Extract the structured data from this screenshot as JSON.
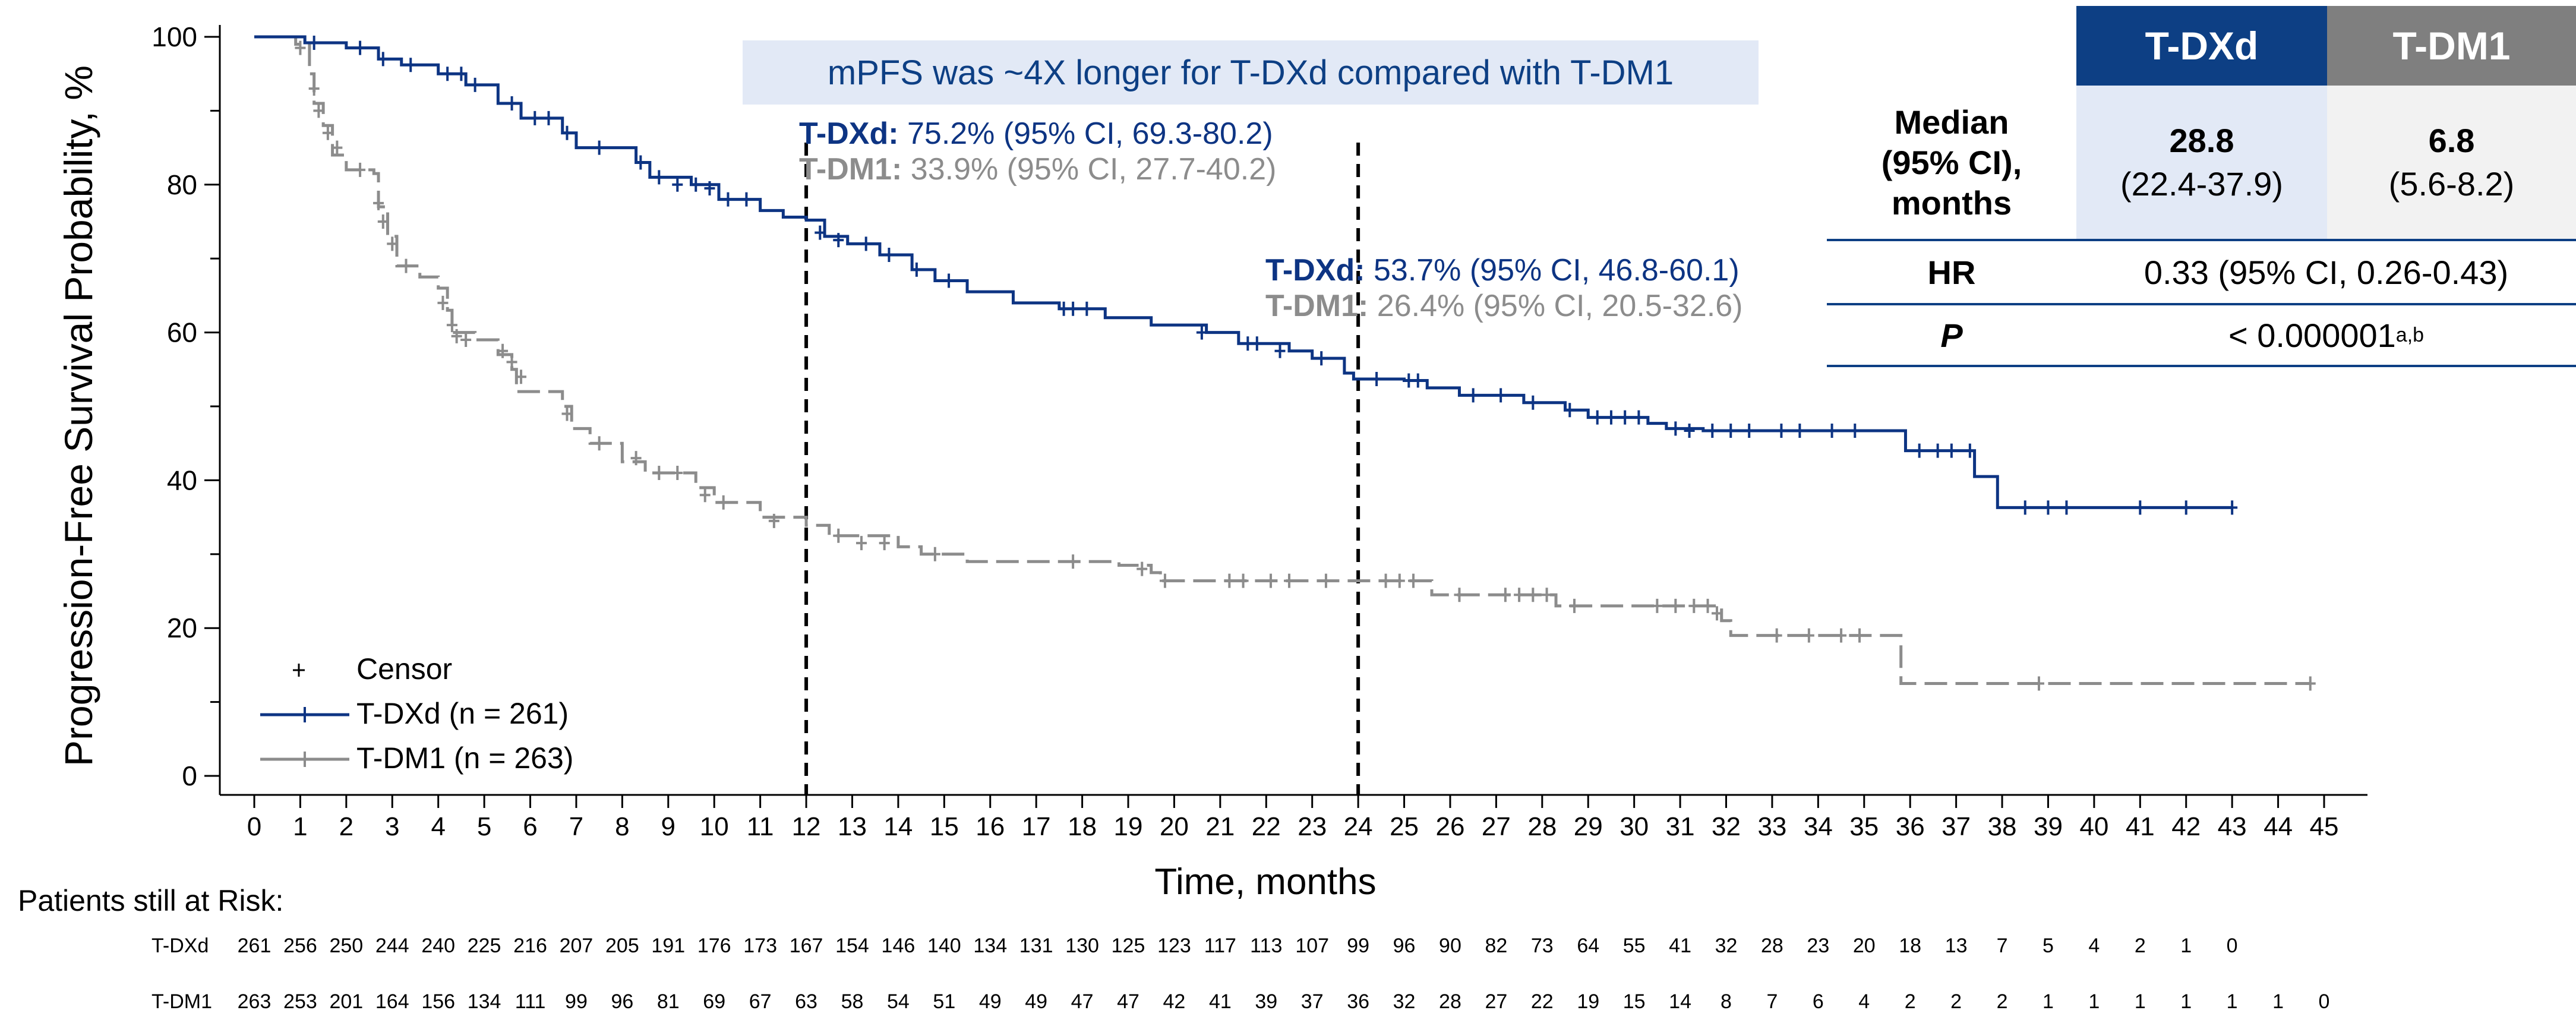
{
  "chart_data": {
    "type": "line",
    "title": "",
    "xlabel": "Time, months",
    "ylabel": "Progression-Free Survival Probability, %",
    "xlim": [
      0,
      45
    ],
    "ylim": [
      0,
      100
    ],
    "xticks": [
      0,
      1,
      2,
      3,
      4,
      5,
      6,
      7,
      8,
      9,
      10,
      11,
      12,
      13,
      14,
      15,
      16,
      17,
      18,
      19,
      20,
      21,
      22,
      23,
      24,
      25,
      26,
      27,
      28,
      29,
      30,
      31,
      32,
      33,
      34,
      35,
      36,
      37,
      38,
      39,
      40,
      41,
      42,
      43,
      44,
      45
    ],
    "yticks": [
      0,
      20,
      40,
      60,
      80,
      100
    ],
    "legend_position": "bottom-left",
    "censor_label": "Censor",
    "series": [
      {
        "name": "T-DXd (n = 261)",
        "color": "#0d3483",
        "style": "solid",
        "steps": [
          [
            0,
            100
          ],
          [
            1.1,
            99.2
          ],
          [
            2,
            98.5
          ],
          [
            2.7,
            97
          ],
          [
            3.2,
            96.2
          ],
          [
            4,
            95
          ],
          [
            4.6,
            93.5
          ],
          [
            5.3,
            91
          ],
          [
            5.8,
            89
          ],
          [
            6.7,
            87
          ],
          [
            7,
            85
          ],
          [
            8.3,
            83
          ],
          [
            8.6,
            81
          ],
          [
            9.5,
            80
          ],
          [
            10.1,
            78
          ],
          [
            11,
            76.5
          ],
          [
            11.5,
            75.6
          ],
          [
            12,
            75.2
          ],
          [
            12.4,
            73
          ],
          [
            12.9,
            72
          ],
          [
            13.6,
            70.5
          ],
          [
            14.3,
            68.5
          ],
          [
            14.8,
            67
          ],
          [
            15.5,
            65.5
          ],
          [
            16.5,
            64
          ],
          [
            17.5,
            63.2
          ],
          [
            18.5,
            62
          ],
          [
            19.5,
            61
          ],
          [
            20.7,
            60
          ],
          [
            21.4,
            58.5
          ],
          [
            22.5,
            57.5
          ],
          [
            23,
            56.5
          ],
          [
            23.7,
            54.5
          ],
          [
            23.9,
            53.7
          ],
          [
            25,
            53.5
          ],
          [
            25.5,
            52.5
          ],
          [
            26.2,
            51.5
          ],
          [
            27.6,
            50.5
          ],
          [
            28.5,
            49.5
          ],
          [
            29,
            48.5
          ],
          [
            30.3,
            47.7
          ],
          [
            30.7,
            47
          ],
          [
            31.5,
            46.7
          ],
          [
            35.9,
            44
          ],
          [
            37.4,
            40.5
          ],
          [
            37.9,
            36.3
          ],
          [
            43,
            36.3
          ]
        ],
        "censors": [
          [
            1.3,
            99.2
          ],
          [
            2.3,
            98.5
          ],
          [
            2.8,
            97
          ],
          [
            3.4,
            96.2
          ],
          [
            4.2,
            95
          ],
          [
            4.5,
            95
          ],
          [
            4.8,
            93.5
          ],
          [
            5.6,
            91
          ],
          [
            6.1,
            89
          ],
          [
            6.4,
            89
          ],
          [
            6.8,
            87
          ],
          [
            7.5,
            85
          ],
          [
            8.4,
            83
          ],
          [
            8.8,
            81
          ],
          [
            9.2,
            80
          ],
          [
            9.6,
            80
          ],
          [
            9.9,
            79.5
          ],
          [
            10.3,
            78
          ],
          [
            10.7,
            78
          ],
          [
            12.3,
            73.5
          ],
          [
            12.7,
            72.5
          ],
          [
            13.3,
            72
          ],
          [
            13.8,
            70.5
          ],
          [
            14.4,
            68.5
          ],
          [
            15.1,
            67
          ],
          [
            17.6,
            63.2
          ],
          [
            17.8,
            63.2
          ],
          [
            18.1,
            63.2
          ],
          [
            20.6,
            60
          ],
          [
            21.6,
            58.5
          ],
          [
            21.8,
            58.5
          ],
          [
            22.3,
            57.5
          ],
          [
            23.2,
            56.5
          ],
          [
            24.4,
            53.7
          ],
          [
            25.1,
            53.5
          ],
          [
            25.3,
            53.5
          ],
          [
            26.5,
            51.5
          ],
          [
            27.1,
            51.5
          ],
          [
            27.8,
            50.5
          ],
          [
            28.6,
            49.5
          ],
          [
            29.2,
            48.5
          ],
          [
            29.5,
            48.5
          ],
          [
            29.8,
            48.5
          ],
          [
            30.1,
            48.5
          ],
          [
            30.9,
            47
          ],
          [
            31.2,
            46.7
          ],
          [
            31.7,
            46.7
          ],
          [
            32.1,
            46.7
          ],
          [
            32.5,
            46.7
          ],
          [
            33.2,
            46.7
          ],
          [
            33.6,
            46.7
          ],
          [
            34.3,
            46.7
          ],
          [
            34.8,
            46.7
          ],
          [
            36.2,
            44
          ],
          [
            36.6,
            44
          ],
          [
            36.9,
            44
          ],
          [
            37.3,
            44
          ],
          [
            38.5,
            36.3
          ],
          [
            39,
            36.3
          ],
          [
            39.4,
            36.3
          ],
          [
            41,
            36.3
          ],
          [
            42,
            36.3
          ],
          [
            43,
            36.3
          ]
        ]
      },
      {
        "name": "T-DM1 (n = 263)",
        "color": "#8c8c8c",
        "style": "dashed",
        "steps": [
          [
            0,
            100
          ],
          [
            0.9,
            99
          ],
          [
            1.2,
            95
          ],
          [
            1.3,
            91
          ],
          [
            1.5,
            88
          ],
          [
            1.7,
            84
          ],
          [
            2,
            82
          ],
          [
            2.6,
            81.5
          ],
          [
            2.7,
            77
          ],
          [
            2.9,
            73
          ],
          [
            3.1,
            69
          ],
          [
            3.6,
            67.5
          ],
          [
            4,
            66
          ],
          [
            4.2,
            63
          ],
          [
            4.3,
            60
          ],
          [
            4.8,
            59
          ],
          [
            5.3,
            57
          ],
          [
            5.6,
            55
          ],
          [
            5.7,
            52
          ],
          [
            6.7,
            50
          ],
          [
            6.9,
            47
          ],
          [
            7.3,
            45
          ],
          [
            8,
            42.5
          ],
          [
            8.5,
            41
          ],
          [
            9.6,
            39
          ],
          [
            10,
            37
          ],
          [
            11,
            35
          ],
          [
            12,
            33.9
          ],
          [
            12.5,
            32.5
          ],
          [
            14,
            31
          ],
          [
            14.5,
            30
          ],
          [
            15.5,
            29
          ],
          [
            18.8,
            28.5
          ],
          [
            19.5,
            27.5
          ],
          [
            19.7,
            26.4
          ],
          [
            24.3,
            26.4
          ],
          [
            25.6,
            24.5
          ],
          [
            28.3,
            23
          ],
          [
            31.9,
            21
          ],
          [
            32.1,
            19
          ],
          [
            35.8,
            12.5
          ],
          [
            44.7,
            12.5
          ]
        ],
        "censors": [
          [
            1,
            98.5
          ],
          [
            1.3,
            93
          ],
          [
            1.4,
            90
          ],
          [
            1.6,
            87
          ],
          [
            1.8,
            85
          ],
          [
            2.3,
            82
          ],
          [
            2.7,
            77.5
          ],
          [
            2.8,
            75
          ],
          [
            3,
            72
          ],
          [
            3.3,
            69
          ],
          [
            4.1,
            64
          ],
          [
            4.3,
            61
          ],
          [
            4.4,
            59.5
          ],
          [
            4.6,
            59
          ],
          [
            5.4,
            57.5
          ],
          [
            5.6,
            56
          ],
          [
            5.8,
            54
          ],
          [
            6.8,
            49
          ],
          [
            7.5,
            45
          ],
          [
            8.3,
            43
          ],
          [
            8.8,
            41
          ],
          [
            9.2,
            41
          ],
          [
            9.8,
            38
          ],
          [
            10.2,
            37
          ],
          [
            11.3,
            34.5
          ],
          [
            12.7,
            32.5
          ],
          [
            13.2,
            31.5
          ],
          [
            13.7,
            31.5
          ],
          [
            14.8,
            30
          ],
          [
            17.8,
            29
          ],
          [
            19.3,
            28
          ],
          [
            19.8,
            26.4
          ],
          [
            21.2,
            26.4
          ],
          [
            21.5,
            26.4
          ],
          [
            22.1,
            26.4
          ],
          [
            22.5,
            26.4
          ],
          [
            23.3,
            26.4
          ],
          [
            24.6,
            26.4
          ],
          [
            24.9,
            26.4
          ],
          [
            25.2,
            26.4
          ],
          [
            26.2,
            24.5
          ],
          [
            27.2,
            24.5
          ],
          [
            27.5,
            24.5
          ],
          [
            27.8,
            24.5
          ],
          [
            28.1,
            24.5
          ],
          [
            28.7,
            23
          ],
          [
            30.5,
            23
          ],
          [
            30.9,
            23
          ],
          [
            31.3,
            23
          ],
          [
            31.6,
            23
          ],
          [
            31.8,
            22
          ],
          [
            33.1,
            19
          ],
          [
            33.8,
            19
          ],
          [
            34.5,
            19
          ],
          [
            34.9,
            19
          ],
          [
            38.8,
            12.5
          ],
          [
            44.7,
            12.5
          ]
        ]
      }
    ],
    "annotations": [
      {
        "x": 12,
        "dashed_line": true,
        "blue_label": "T-DXd:",
        "blue_text": " 75.2% (95% CI, 69.3-80.2)",
        "grey_label": "T-DM1:",
        "grey_text": " 33.9% (95% CI, 27.7-40.2)"
      },
      {
        "x": 24,
        "dashed_line": true,
        "blue_label": "T-DXd:",
        "blue_text": " 53.7% (95% CI, 46.8-60.1)",
        "grey_label": "T-DM1:",
        "grey_text": " 26.4% (95% CI, 20.5-32.6)"
      }
    ],
    "risk_table": {
      "title": "Patients still at Risk:",
      "rows": [
        {
          "arm": "T-DXd",
          "values": [
            "261",
            "256",
            "250",
            "244",
            "240",
            "225",
            "216",
            "207",
            "205",
            "191",
            "176",
            "173",
            "167",
            "154",
            "146",
            "140",
            "134",
            "131",
            "130",
            "125",
            "123",
            "117",
            "113",
            "107",
            "99",
            "96",
            "90",
            "82",
            "73",
            "64",
            "55",
            "41",
            "32",
            "28",
            "23",
            "20",
            "18",
            "13",
            "7",
            "5",
            "4",
            "2",
            "1",
            "0"
          ]
        },
        {
          "arm": "T-DM1",
          "values": [
            "263",
            "253",
            "201",
            "164",
            "156",
            "134",
            "111",
            "99",
            "96",
            "81",
            "69",
            "67",
            "63",
            "58",
            "54",
            "51",
            "49",
            "49",
            "47",
            "47",
            "42",
            "41",
            "39",
            "37",
            "36",
            "32",
            "28",
            "27",
            "22",
            "19",
            "15",
            "14",
            "8",
            "7",
            "6",
            "4",
            "2",
            "2",
            "2",
            "1",
            "1",
            "1",
            "1",
            "1",
            "1",
            "0"
          ]
        }
      ]
    }
  },
  "banner": "mPFS was ~4X longer for T-DXd compared with T-DM1",
  "annotation_1": {
    "blue_label": "T-DXd:",
    "blue_text": " 75.2% (95% CI, 69.3-80.2)",
    "grey_label": "T-DM1:",
    "grey_text": " 33.9% (95% CI, 27.7-40.2)"
  },
  "annotation_2": {
    "blue_label": "T-DXd:",
    "blue_text": " 53.7% (95% CI, 46.8-60.1)",
    "grey_label": "T-DM1:",
    "grey_text": " 26.4% (95% CI, 20.5-32.6)"
  },
  "summary_table": {
    "header_tdxd": "T-DXd",
    "header_tdm1": "T-DM1",
    "median_label_1": "Median",
    "median_label_2": "(95% CI),",
    "median_label_3": "months",
    "tdxd_median": "28.8",
    "tdxd_ci": "(22.4-37.9)",
    "tdm1_median": "6.8",
    "tdm1_ci": "(5.6-8.2)",
    "hr_label": "HR",
    "hr_value": "0.33 (95% CI, 0.26-0.43)",
    "p_label": "P",
    "p_value": "< 0.000001",
    "p_superscript": "a,b"
  },
  "legend": {
    "censor": "Censor",
    "tdxd": "T-DXd (n = 261)",
    "tdm1": "T-DM1 (n = 263)"
  },
  "colors": {
    "tdxd": "#0d3483",
    "tdm1": "#8c8c8c",
    "header_tdxd": "#0d3f84",
    "header_tdm1": "#7f7f7f",
    "banner_bg": "#e2e9f6"
  }
}
